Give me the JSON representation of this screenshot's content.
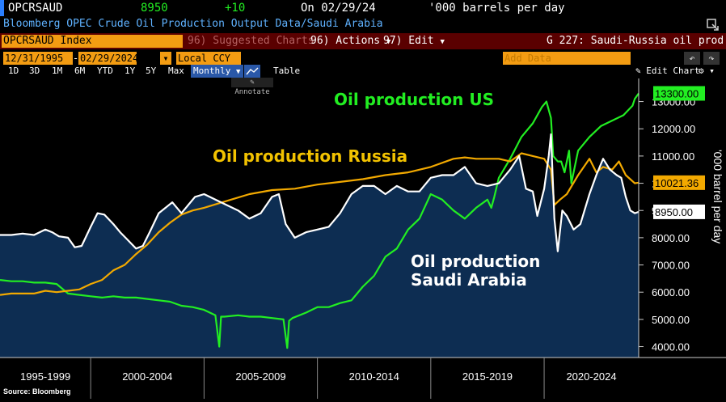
{
  "terminal": {
    "ticker": "OPCRSAUD",
    "last_value": "8950",
    "change": "+10",
    "on_date": "On 02/29/24",
    "units": "'000 barrels per day",
    "description": "Bloomberg OPEC Crude Oil Production Output Data/Saudi Arabia",
    "security_field": "OPCRSAUD Index",
    "menu_suggested": "96) Suggested Charts",
    "menu_suggested_num": "",
    "menu_actions": "96) Actions",
    "menu_edit": "97) Edit",
    "chart_name": "G 227: Saudi-Russia oil prod",
    "start_date": "12/31/1995",
    "end_date": "02/29/2024",
    "currency": "Local CCY",
    "add_data_placeholder": "Add Data",
    "edit_chart_label": "Edit Chart",
    "annotate_label": "Annotate",
    "periods": [
      "1D",
      "3D",
      "1M",
      "6M",
      "YTD",
      "1Y",
      "5Y",
      "Max"
    ],
    "frequency": "Monthly",
    "table_label": "Table",
    "source": "Source: Bloomberg"
  },
  "colors": {
    "us": "#22ee22",
    "russia": "#f2a900",
    "saudi_line": "#ffffff",
    "saudi_fill": "#0d2d52",
    "annotation_us": "#22ee22",
    "annotation_russia": "#f2c200",
    "annotation_saudi": "#ffffff"
  },
  "chart_data": {
    "type": "line",
    "title": "G 227: Saudi-Russia oil prod",
    "ylabel": "'000 barrel per day",
    "ylim": [
      3600,
      13700
    ],
    "y_ticks": [
      4000,
      5000,
      6000,
      7000,
      8000,
      9000,
      10000,
      11000,
      12000,
      13000
    ],
    "y_tick_labels": [
      "4000.00",
      "5000.00",
      "6000.00",
      "7000.00",
      "8000.00",
      "9000.00",
      "10000.00",
      "11000.00",
      "12000.00",
      "13000.00"
    ],
    "x_range": [
      1996.0,
      2024.17
    ],
    "x_band_labels": [
      "1995-1999",
      "2000-2004",
      "2005-2009",
      "2010-2014",
      "2015-2019",
      "2020-2024"
    ],
    "x_band_bounds": [
      1995.0,
      2000.0,
      2005.0,
      2010.0,
      2015.0,
      2020.0,
      2025.0
    ],
    "annotations": {
      "us": "Oil production US",
      "russia": "Oil production Russia",
      "saudi_line1": "Oil production",
      "saudi_line2": "Saudi Arabia"
    },
    "last_labels": {
      "us": "13300.00",
      "russia": "10021.36",
      "saudi": "8950.00"
    },
    "series": [
      {
        "name": "Oil production US",
        "x": [
          1996.0,
          1996.5,
          1997.0,
          1997.5,
          1998.0,
          1998.5,
          1999.0,
          1999.5,
          2000.0,
          2000.5,
          2001.0,
          2001.5,
          2002.0,
          2002.5,
          2003.0,
          2003.5,
          2004.0,
          2004.5,
          2005.0,
          2005.5,
          2005.67,
          2005.75,
          2005.9,
          2006.5,
          2007.0,
          2007.5,
          2008.0,
          2008.5,
          2008.67,
          2008.75,
          2008.9,
          2009.5,
          2010.0,
          2010.5,
          2011.0,
          2011.5,
          2012.0,
          2012.5,
          2013.0,
          2013.5,
          2014.0,
          2014.5,
          2015.0,
          2015.5,
          2016.0,
          2016.5,
          2017.0,
          2017.5,
          2017.67,
          2017.8,
          2018.0,
          2018.5,
          2019.0,
          2019.5,
          2019.9,
          2020.1,
          2020.3,
          2020.4,
          2020.6,
          2020.75,
          2020.9,
          2021.1,
          2021.2,
          2021.5,
          2022.0,
          2022.5,
          2023.0,
          2023.5,
          2023.9,
          2024.0,
          2024.17
        ],
        "values": [
          6450,
          6400,
          6400,
          6350,
          6350,
          6300,
          5950,
          5900,
          5850,
          5800,
          5850,
          5800,
          5800,
          5750,
          5700,
          5650,
          5500,
          5450,
          5350,
          5150,
          4000,
          5100,
          5100,
          5150,
          5100,
          5100,
          5050,
          5000,
          3950,
          4950,
          5050,
          5250,
          5450,
          5450,
          5600,
          5700,
          6200,
          6600,
          7300,
          7600,
          8300,
          8700,
          9600,
          9400,
          9000,
          8700,
          9100,
          9400,
          9100,
          9500,
          10200,
          10900,
          11700,
          12200,
          12800,
          13000,
          12400,
          11000,
          10800,
          10800,
          10400,
          11200,
          10000,
          11200,
          11700,
          12100,
          12300,
          12500,
          12850,
          13100,
          13300
        ]
      },
      {
        "name": "Oil production Russia",
        "x": [
          1996.0,
          1996.5,
          1997.0,
          1997.5,
          1998.0,
          1998.5,
          1999.0,
          1999.5,
          2000.0,
          2000.5,
          2001.0,
          2001.5,
          2002.0,
          2002.5,
          2003.0,
          2003.5,
          2004.0,
          2004.5,
          2005.0,
          2006.0,
          2007.0,
          2008.0,
          2009.0,
          2010.0,
          2011.0,
          2012.0,
          2013.0,
          2014.0,
          2015.0,
          2016.0,
          2016.5,
          2017.0,
          2018.0,
          2018.5,
          2019.0,
          2019.5,
          2020.0,
          2020.3,
          2020.45,
          2020.7,
          2021.0,
          2021.5,
          2022.0,
          2022.3,
          2022.6,
          2023.0,
          2023.3,
          2023.6,
          2024.0,
          2024.17
        ],
        "values": [
          5900,
          5950,
          5950,
          5950,
          6050,
          6000,
          6050,
          6100,
          6300,
          6450,
          6800,
          7000,
          7400,
          7750,
          8200,
          8550,
          8850,
          9000,
          9100,
          9350,
          9600,
          9750,
          9800,
          9950,
          10050,
          10150,
          10300,
          10400,
          10600,
          10900,
          10950,
          10900,
          10900,
          10800,
          11100,
          11000,
          10900,
          10500,
          9200,
          9400,
          9600,
          10300,
          10900,
          10400,
          10600,
          10500,
          10800,
          10300,
          10000,
          10021
        ]
      },
      {
        "name": "Oil production Saudi Arabia",
        "x": [
          1996.0,
          1996.5,
          1997.0,
          1997.5,
          1998.0,
          1998.3,
          1998.6,
          1999.0,
          1999.3,
          1999.6,
          2000.0,
          2000.3,
          2000.6,
          2001.0,
          2001.3,
          2001.6,
          2002.0,
          2002.3,
          2002.6,
          2003.0,
          2003.3,
          2003.6,
          2004.0,
          2004.3,
          2004.6,
          2005.0,
          2005.5,
          2006.0,
          2006.5,
          2007.0,
          2007.5,
          2008.0,
          2008.3,
          2008.6,
          2009.0,
          2009.5,
          2010.0,
          2010.5,
          2011.0,
          2011.5,
          2012.0,
          2012.5,
          2013.0,
          2013.5,
          2014.0,
          2014.5,
          2015.0,
          2015.5,
          2016.0,
          2016.5,
          2017.0,
          2017.5,
          2018.0,
          2018.5,
          2018.9,
          2019.2,
          2019.5,
          2019.7,
          2020.0,
          2020.2,
          2020.3,
          2020.45,
          2020.6,
          2020.8,
          2021.0,
          2021.3,
          2021.6,
          2022.0,
          2022.3,
          2022.6,
          2022.9,
          2023.2,
          2023.4,
          2023.6,
          2023.8,
          2024.0,
          2024.17
        ],
        "values": [
          8100,
          8100,
          8150,
          8100,
          8300,
          8200,
          8050,
          8000,
          7650,
          7700,
          8400,
          8900,
          8850,
          8500,
          8200,
          7950,
          7600,
          7700,
          8200,
          8900,
          9100,
          9300,
          8900,
          9200,
          9500,
          9600,
          9400,
          9200,
          9000,
          8700,
          8900,
          9500,
          9600,
          8500,
          8000,
          8200,
          8300,
          8400,
          8900,
          9600,
          9900,
          9900,
          9600,
          9900,
          9700,
          9700,
          10200,
          10300,
          10300,
          10600,
          10000,
          9900,
          10000,
          10500,
          11000,
          9800,
          9700,
          8800,
          9800,
          11000,
          11800,
          8700,
          7500,
          9000,
          8800,
          8300,
          8500,
          9600,
          10300,
          10900,
          10500,
          10300,
          10200,
          9500,
          9000,
          8900,
          8950
        ]
      }
    ]
  }
}
